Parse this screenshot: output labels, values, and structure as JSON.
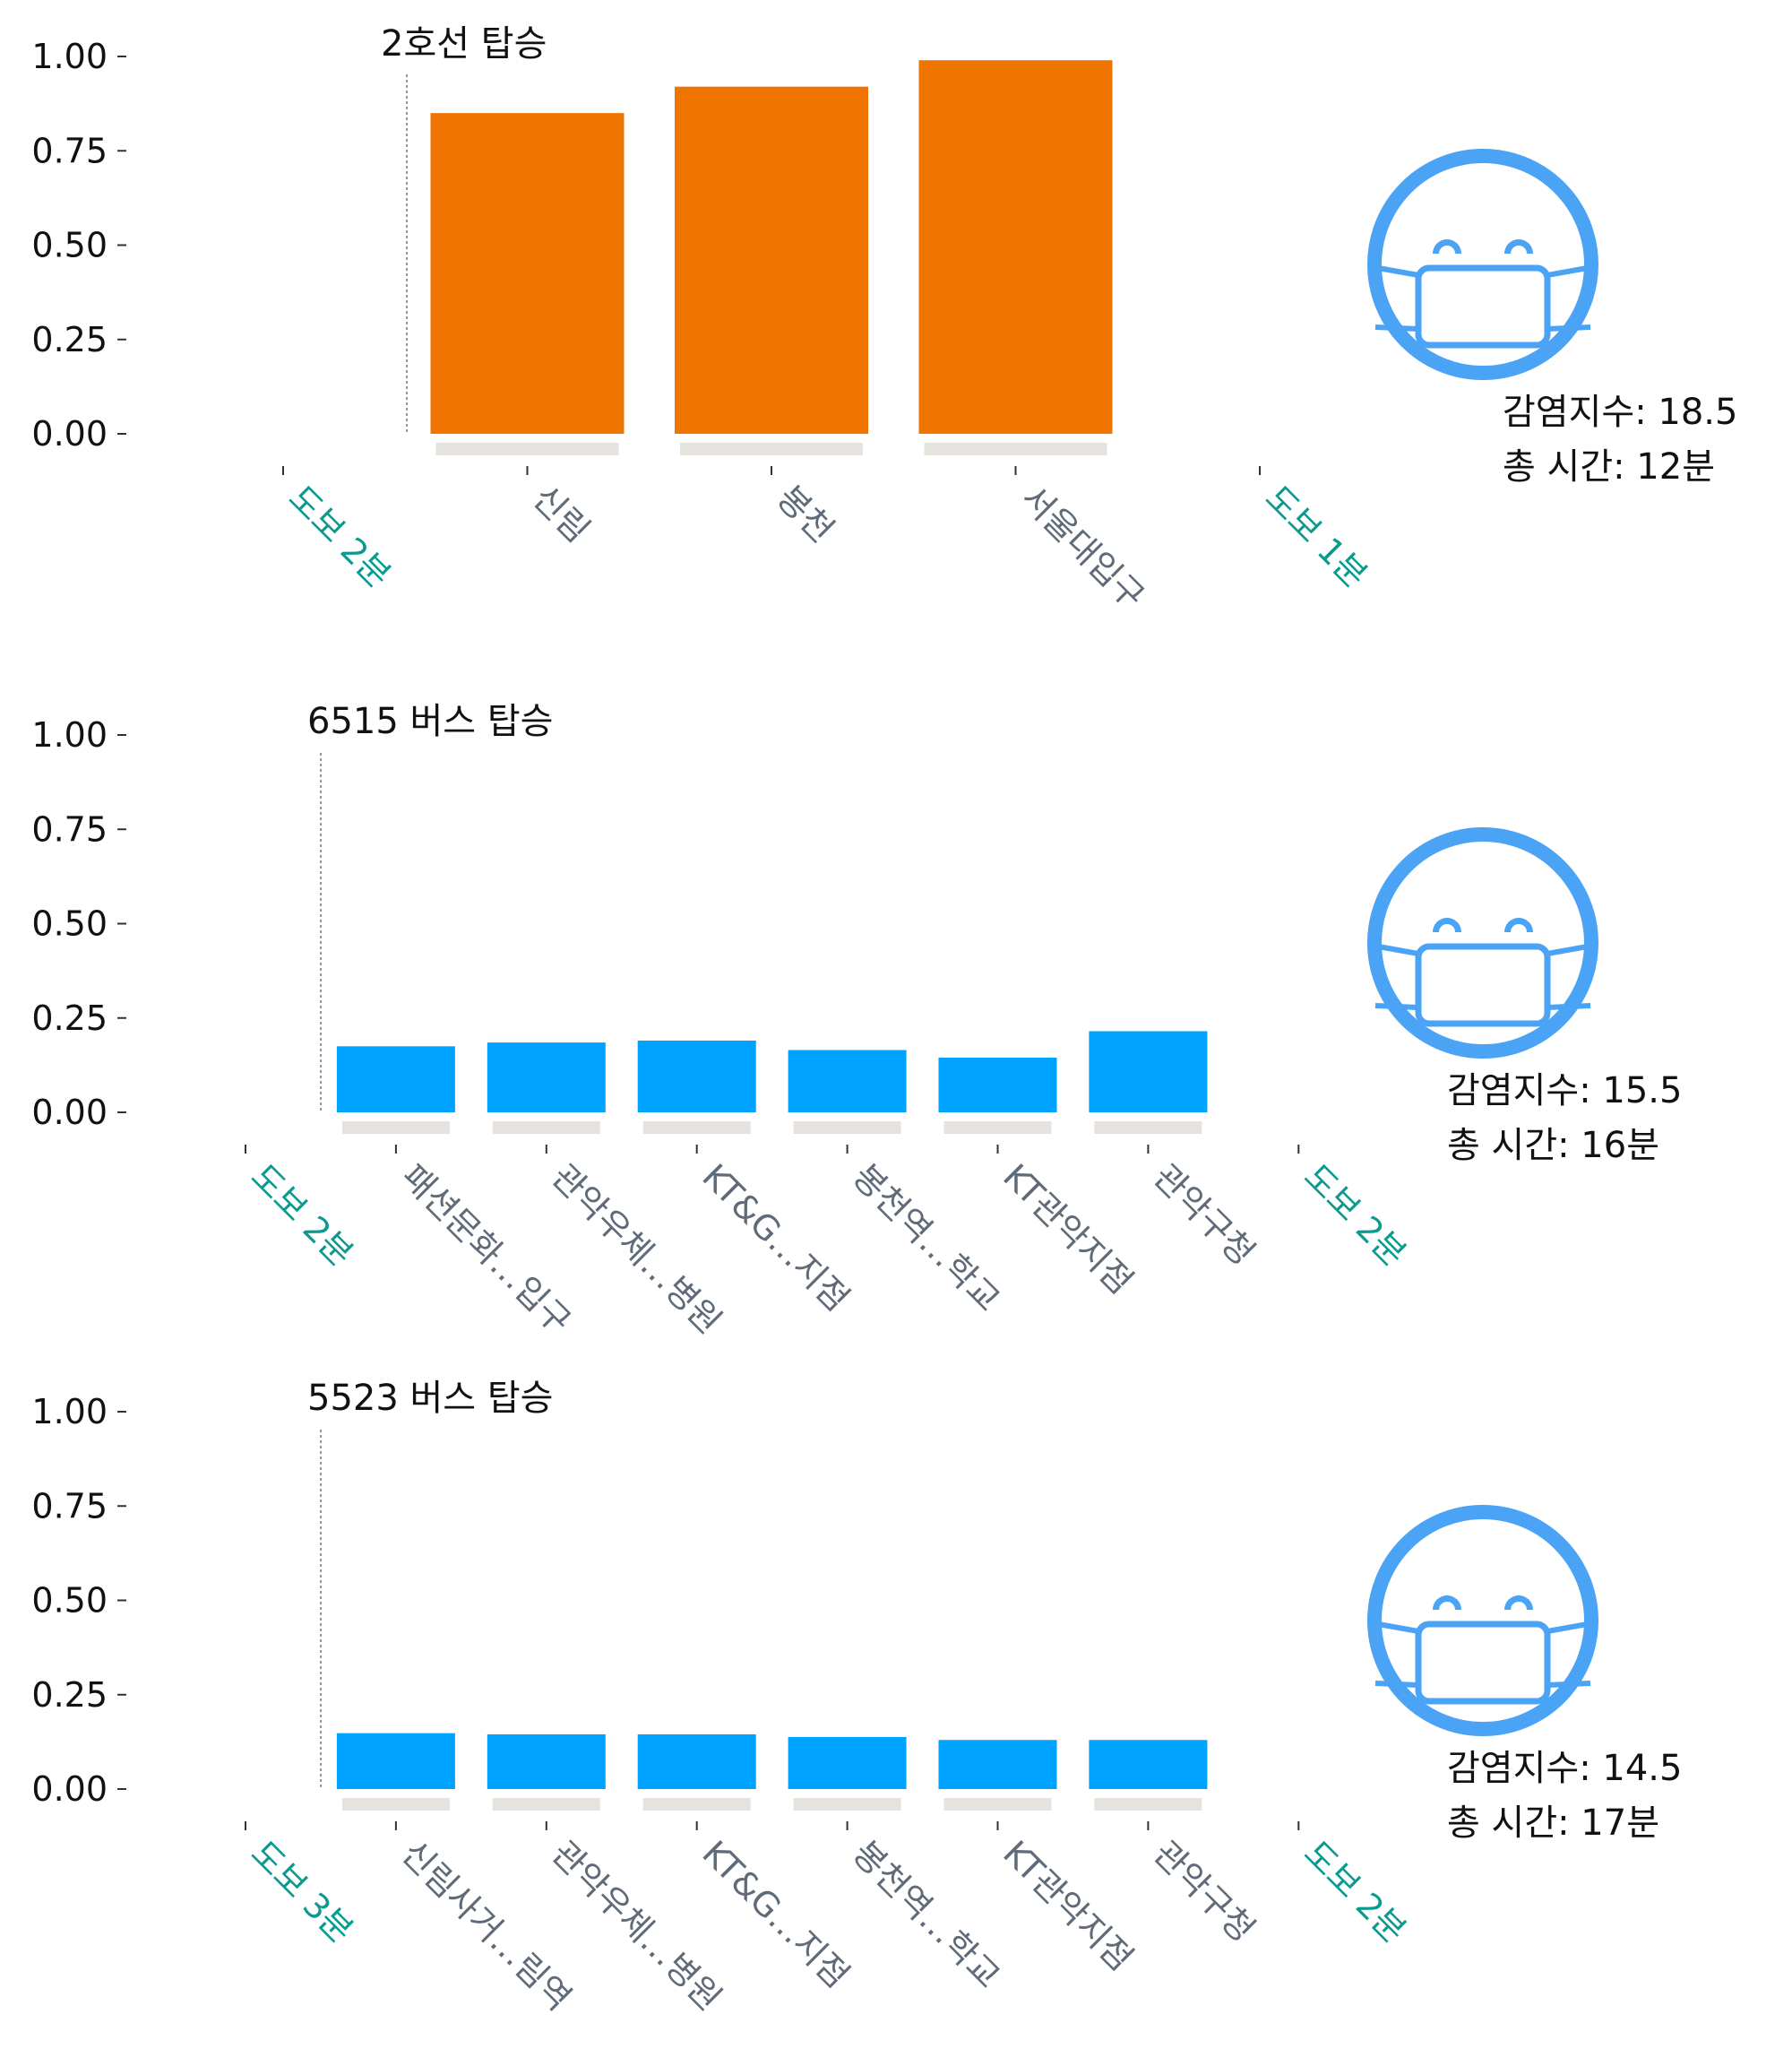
{
  "colors": {
    "subway": "#f07400",
    "bus": "#00a2ff",
    "base_line": "#e6e3de",
    "walk_label": "#0a9a8f",
    "stop_label": "#5f6b78",
    "mask_icon": "#4aa3f5",
    "axis_text": "#111111"
  },
  "chart_data": [
    {
      "type": "bar",
      "title": "2호선 탑승",
      "ylim": [
        0,
        1
      ],
      "yticks": [
        "1.00",
        "0.75",
        "0.50",
        "0.25",
        "0.00"
      ],
      "leading_label": "도보 2분",
      "trailing_label": "도보 1분",
      "categories": [
        "신림",
        "봉천",
        "서울대입구"
      ],
      "values": [
        0.85,
        0.92,
        0.99
      ],
      "color": "subway",
      "icon": "masked-face-icon",
      "infection_label": "감염지수: 18.5",
      "time_label": "총 시간: 12분"
    },
    {
      "type": "bar",
      "title": "6515 버스 탑승",
      "ylim": [
        0,
        1
      ],
      "yticks": [
        "1.00",
        "0.75",
        "0.50",
        "0.25",
        "0.00"
      ],
      "leading_label": "도보 2분",
      "trailing_label": "도보 2분",
      "categories": [
        "패션문화…입구",
        "관악우체…병원",
        "KT&G…지점",
        "봉천역…학교",
        "KT관악지점",
        "관악구청"
      ],
      "values": [
        0.175,
        0.185,
        0.19,
        0.165,
        0.145,
        0.215
      ],
      "color": "bus",
      "icon": "masked-face-icon",
      "infection_label": "감염지수: 15.5",
      "time_label": "총 시간: 16분"
    },
    {
      "type": "bar",
      "title": "5523 버스 탑승",
      "ylim": [
        0,
        1
      ],
      "yticks": [
        "1.00",
        "0.75",
        "0.50",
        "0.25",
        "0.00"
      ],
      "leading_label": "도보 3분",
      "trailing_label": "도보 2분",
      "categories": [
        "신림사거…림역",
        "관악우체…병원",
        "KT&G…지점",
        "봉천역…학교",
        "KT관악지점",
        "관악구청"
      ],
      "values": [
        0.148,
        0.145,
        0.145,
        0.138,
        0.13,
        0.13
      ],
      "color": "bus",
      "icon": "masked-face-icon",
      "infection_label": "감염지수: 14.5",
      "time_label": "총 시간: 17분"
    }
  ]
}
